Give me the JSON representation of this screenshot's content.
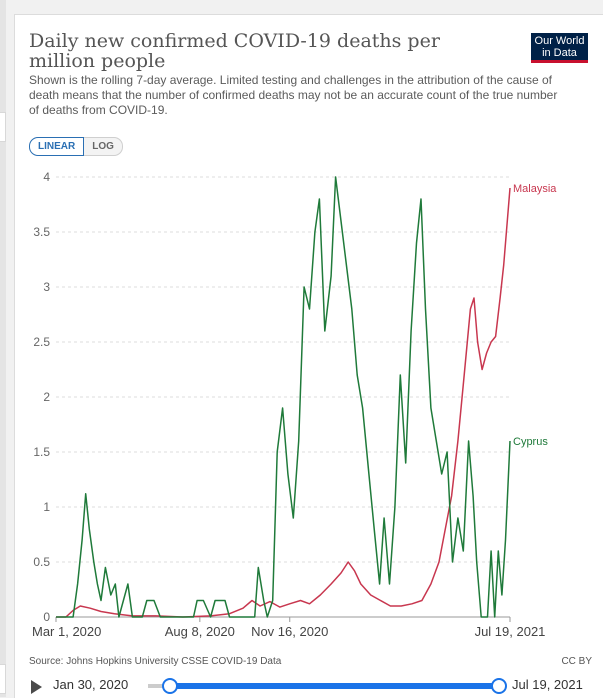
{
  "header": {
    "title": "Daily new confirmed COVID-19 deaths per million people",
    "subtitle": "Shown is the rolling 7-day average. Limited testing and challenges in the attribution of the cause of death means that the number of confirmed deaths may not be an accurate count of the true number of deaths from COVID-19.",
    "logo_line1": "Our World",
    "logo_line2": "in Data"
  },
  "controls": {
    "linear_label": "LINEAR",
    "log_label": "LOG",
    "active_scale": "linear"
  },
  "footer": {
    "source": "Source: Johns Hopkins University CSSE COVID-19 Data",
    "license": "CC BY"
  },
  "timeline": {
    "start_label": "Jan 30, 2020",
    "end_label": "Jul 19, 2021"
  },
  "colors": {
    "malaysia": "#c8374f",
    "cyprus": "#1f7a3a",
    "accent": "#1a73e8"
  },
  "chart_data": {
    "type": "line",
    "title": "Daily new confirmed COVID-19 deaths per million people",
    "xlabel": "",
    "ylabel": "",
    "xlim": [
      "2020-03-01",
      "2021-07-19"
    ],
    "ylim": [
      0,
      4
    ],
    "y_ticks": [
      "0",
      "0.5",
      "1",
      "1.5",
      "2",
      "2.5",
      "3",
      "3.5",
      "4"
    ],
    "y_tick_values": [
      0,
      0.5,
      1,
      1.5,
      2,
      2.5,
      3,
      3.5,
      4
    ],
    "x_tick_labels": [
      "Mar 1, 2020",
      "Aug 8, 2020",
      "Nov 16, 2020",
      "Jul 19, 2021"
    ],
    "x_tick_dates": [
      "2020-03-01",
      "2020-08-08",
      "2020-11-16",
      "2021-07-19"
    ],
    "grid": true,
    "series": [
      {
        "name": "Malaysia",
        "color": "#c8374f",
        "points": [
          [
            "2020-03-01",
            0
          ],
          [
            "2020-03-12",
            0.0
          ],
          [
            "2020-03-20",
            0.06
          ],
          [
            "2020-03-28",
            0.1
          ],
          [
            "2020-04-08",
            0.08
          ],
          [
            "2020-04-20",
            0.05
          ],
          [
            "2020-05-05",
            0.03
          ],
          [
            "2020-05-25",
            0.01
          ],
          [
            "2020-06-20",
            0.01
          ],
          [
            "2020-07-20",
            0.0
          ],
          [
            "2020-08-20",
            0.01
          ],
          [
            "2020-09-10",
            0.03
          ],
          [
            "2020-09-25",
            0.08
          ],
          [
            "2020-10-05",
            0.15
          ],
          [
            "2020-10-14",
            0.1
          ],
          [
            "2020-10-25",
            0.14
          ],
          [
            "2020-11-05",
            0.09
          ],
          [
            "2020-11-16",
            0.12
          ],
          [
            "2020-11-28",
            0.15
          ],
          [
            "2020-12-08",
            0.12
          ],
          [
            "2020-12-20",
            0.2
          ],
          [
            "2021-01-01",
            0.3
          ],
          [
            "2021-01-12",
            0.4
          ],
          [
            "2021-01-20",
            0.5
          ],
          [
            "2021-01-27",
            0.42
          ],
          [
            "2021-02-03",
            0.3
          ],
          [
            "2021-02-14",
            0.2
          ],
          [
            "2021-02-25",
            0.15
          ],
          [
            "2021-03-08",
            0.1
          ],
          [
            "2021-03-20",
            0.1
          ],
          [
            "2021-04-01",
            0.12
          ],
          [
            "2021-04-12",
            0.15
          ],
          [
            "2021-04-22",
            0.3
          ],
          [
            "2021-05-01",
            0.5
          ],
          [
            "2021-05-08",
            0.8
          ],
          [
            "2021-05-15",
            1.1
          ],
          [
            "2021-05-22",
            1.6
          ],
          [
            "2021-05-29",
            2.2
          ],
          [
            "2021-06-05",
            2.8
          ],
          [
            "2021-06-09",
            2.9
          ],
          [
            "2021-06-13",
            2.5
          ],
          [
            "2021-06-18",
            2.25
          ],
          [
            "2021-06-23",
            2.4
          ],
          [
            "2021-06-28",
            2.5
          ],
          [
            "2021-07-03",
            2.55
          ],
          [
            "2021-07-08",
            2.9
          ],
          [
            "2021-07-12",
            3.2
          ],
          [
            "2021-07-15",
            3.5
          ],
          [
            "2021-07-19",
            3.9
          ]
        ]
      },
      {
        "name": "Cyprus",
        "color": "#1f7a3a",
        "points": [
          [
            "2020-03-01",
            0
          ],
          [
            "2020-03-20",
            0
          ],
          [
            "2020-03-25",
            0.3
          ],
          [
            "2020-03-30",
            0.7
          ],
          [
            "2020-04-03",
            1.12
          ],
          [
            "2020-04-07",
            0.8
          ],
          [
            "2020-04-12",
            0.5
          ],
          [
            "2020-04-16",
            0.3
          ],
          [
            "2020-04-20",
            0.15
          ],
          [
            "2020-04-25",
            0.45
          ],
          [
            "2020-05-01",
            0.2
          ],
          [
            "2020-05-06",
            0.3
          ],
          [
            "2020-05-10",
            0
          ],
          [
            "2020-05-15",
            0.15
          ],
          [
            "2020-05-20",
            0.3
          ],
          [
            "2020-05-25",
            0
          ],
          [
            "2020-06-05",
            0
          ],
          [
            "2020-06-10",
            0.15
          ],
          [
            "2020-06-18",
            0.15
          ],
          [
            "2020-06-25",
            0
          ],
          [
            "2020-08-01",
            0
          ],
          [
            "2020-08-05",
            0.15
          ],
          [
            "2020-08-12",
            0.15
          ],
          [
            "2020-08-20",
            0
          ],
          [
            "2020-08-25",
            0.15
          ],
          [
            "2020-09-05",
            0.15
          ],
          [
            "2020-09-10",
            0
          ],
          [
            "2020-10-08",
            0
          ],
          [
            "2020-10-12",
            0.45
          ],
          [
            "2020-10-18",
            0.15
          ],
          [
            "2020-10-22",
            0
          ],
          [
            "2020-10-28",
            0.15
          ],
          [
            "2020-11-02",
            1.5
          ],
          [
            "2020-11-08",
            1.9
          ],
          [
            "2020-11-14",
            1.3
          ],
          [
            "2020-11-20",
            0.9
          ],
          [
            "2020-11-26",
            1.6
          ],
          [
            "2020-12-02",
            3.0
          ],
          [
            "2020-12-08",
            2.8
          ],
          [
            "2020-12-14",
            3.5
          ],
          [
            "2020-12-19",
            3.8
          ],
          [
            "2020-12-25",
            2.6
          ],
          [
            "2021-01-01",
            3.1
          ],
          [
            "2021-01-06",
            4.0
          ],
          [
            "2021-01-12",
            3.6
          ],
          [
            "2021-01-18",
            3.2
          ],
          [
            "2021-01-24",
            2.8
          ],
          [
            "2021-01-30",
            2.2
          ],
          [
            "2021-02-05",
            1.9
          ],
          [
            "2021-02-12",
            1.3
          ],
          [
            "2021-02-18",
            0.8
          ],
          [
            "2021-02-24",
            0.3
          ],
          [
            "2021-03-01",
            0.9
          ],
          [
            "2021-03-07",
            0.3
          ],
          [
            "2021-03-13",
            1.0
          ],
          [
            "2021-03-19",
            2.2
          ],
          [
            "2021-03-25",
            1.4
          ],
          [
            "2021-03-31",
            2.6
          ],
          [
            "2021-04-06",
            3.4
          ],
          [
            "2021-04-11",
            3.8
          ],
          [
            "2021-04-16",
            2.8
          ],
          [
            "2021-04-22",
            1.9
          ],
          [
            "2021-04-28",
            1.6
          ],
          [
            "2021-05-04",
            1.3
          ],
          [
            "2021-05-10",
            1.5
          ],
          [
            "2021-05-16",
            0.5
          ],
          [
            "2021-05-22",
            0.9
          ],
          [
            "2021-05-28",
            0.6
          ],
          [
            "2021-06-03",
            1.6
          ],
          [
            "2021-06-08",
            1.1
          ],
          [
            "2021-06-12",
            0.5
          ],
          [
            "2021-06-17",
            0
          ],
          [
            "2021-06-24",
            0
          ],
          [
            "2021-06-28",
            0.6
          ],
          [
            "2021-07-02",
            0
          ],
          [
            "2021-07-06",
            0.6
          ],
          [
            "2021-07-10",
            0.2
          ],
          [
            "2021-07-14",
            0.7
          ],
          [
            "2021-07-19",
            1.6
          ]
        ]
      }
    ]
  }
}
